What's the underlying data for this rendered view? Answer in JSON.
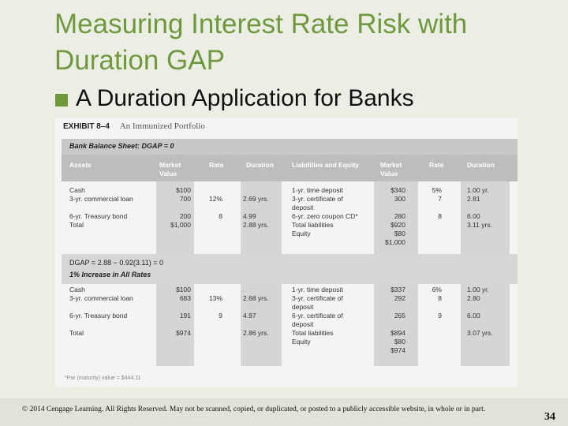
{
  "title": "Measuring Interest Rate Risk with Duration GAP",
  "bullet": "A Duration Application for Banks",
  "exhibit": {
    "label": "EXHIBIT 8–4",
    "subtitle": "An Immunized Portfolio",
    "section1_label": "Bank Balance Sheet: DGAP = 0",
    "dgap_line": "DGAP = 2.88 − 0.92(3.11) = 0",
    "section2_label": "1% Increase in All Rates",
    "footnote": "*Par (maturity) value = $444.11",
    "headers": {
      "assets": "Assets",
      "market_value": "Market Value",
      "rate": "Rate",
      "duration": "Duration",
      "liabilities": "Liabilities and Equity",
      "market_value2": "Market Value",
      "rate2": "Rate",
      "duration2": "Duration"
    },
    "top": {
      "assets": [
        "Cash",
        "3-yr. commercial loan",
        "",
        "6-yr. Treasury bond",
        "Total"
      ],
      "asset_mv": [
        "$100",
        "700",
        "",
        "200",
        "$1,000"
      ],
      "asset_rate": [
        "",
        "12%",
        "",
        "8",
        ""
      ],
      "asset_dur": [
        "",
        "2.69 yrs.",
        "",
        "4.99",
        "2.88 yrs."
      ],
      "liabs": [
        "1-yr. time deposit",
        "3-yr. certificate of",
        "deposit",
        "6-yr. zero coupon CD*",
        "Total liabilities",
        "Equity"
      ],
      "liab_mv": [
        "$340",
        "300",
        "",
        "280",
        "$920",
        "$80",
        "$1,000"
      ],
      "liab_rate": [
        "5%",
        "7",
        "",
        "8",
        ""
      ],
      "liab_dur": [
        "1.00 yr.",
        "2.81",
        "",
        "6.00",
        "3.11 yrs."
      ]
    },
    "bottom": {
      "assets": [
        "Cash",
        "3-yr. commercial loan",
        "",
        "6-yr. Treasury bond",
        "",
        "Total"
      ],
      "asset_mv": [
        "$100",
        "683",
        "",
        "191",
        "",
        "$974"
      ],
      "asset_rate": [
        "",
        "13%",
        "",
        "9",
        "",
        ""
      ],
      "asset_dur": [
        "",
        "2.68 yrs.",
        "",
        "4.97",
        "",
        "2.86 yrs."
      ],
      "liabs": [
        "1-yr. time deposit",
        "3-yr. certificate of",
        "deposit",
        "6-yr. certificate of",
        "deposit",
        "Total liabilities",
        "Equity"
      ],
      "liab_mv": [
        "$337",
        "292",
        "",
        "265",
        "",
        "$894",
        "$80",
        "$974"
      ],
      "liab_rate": [
        "6%",
        "8",
        "",
        "9",
        "",
        ""
      ],
      "liab_dur": [
        "1.00 yr.",
        "2.80",
        "",
        "6.00",
        "",
        "3.07 yrs."
      ]
    }
  },
  "footer": "© 2014 Cengage Learning. All Rights Reserved. May not be scanned, copied, or duplicated, or posted to a publicly accessible website, in whole or in part.",
  "page_number": "34"
}
